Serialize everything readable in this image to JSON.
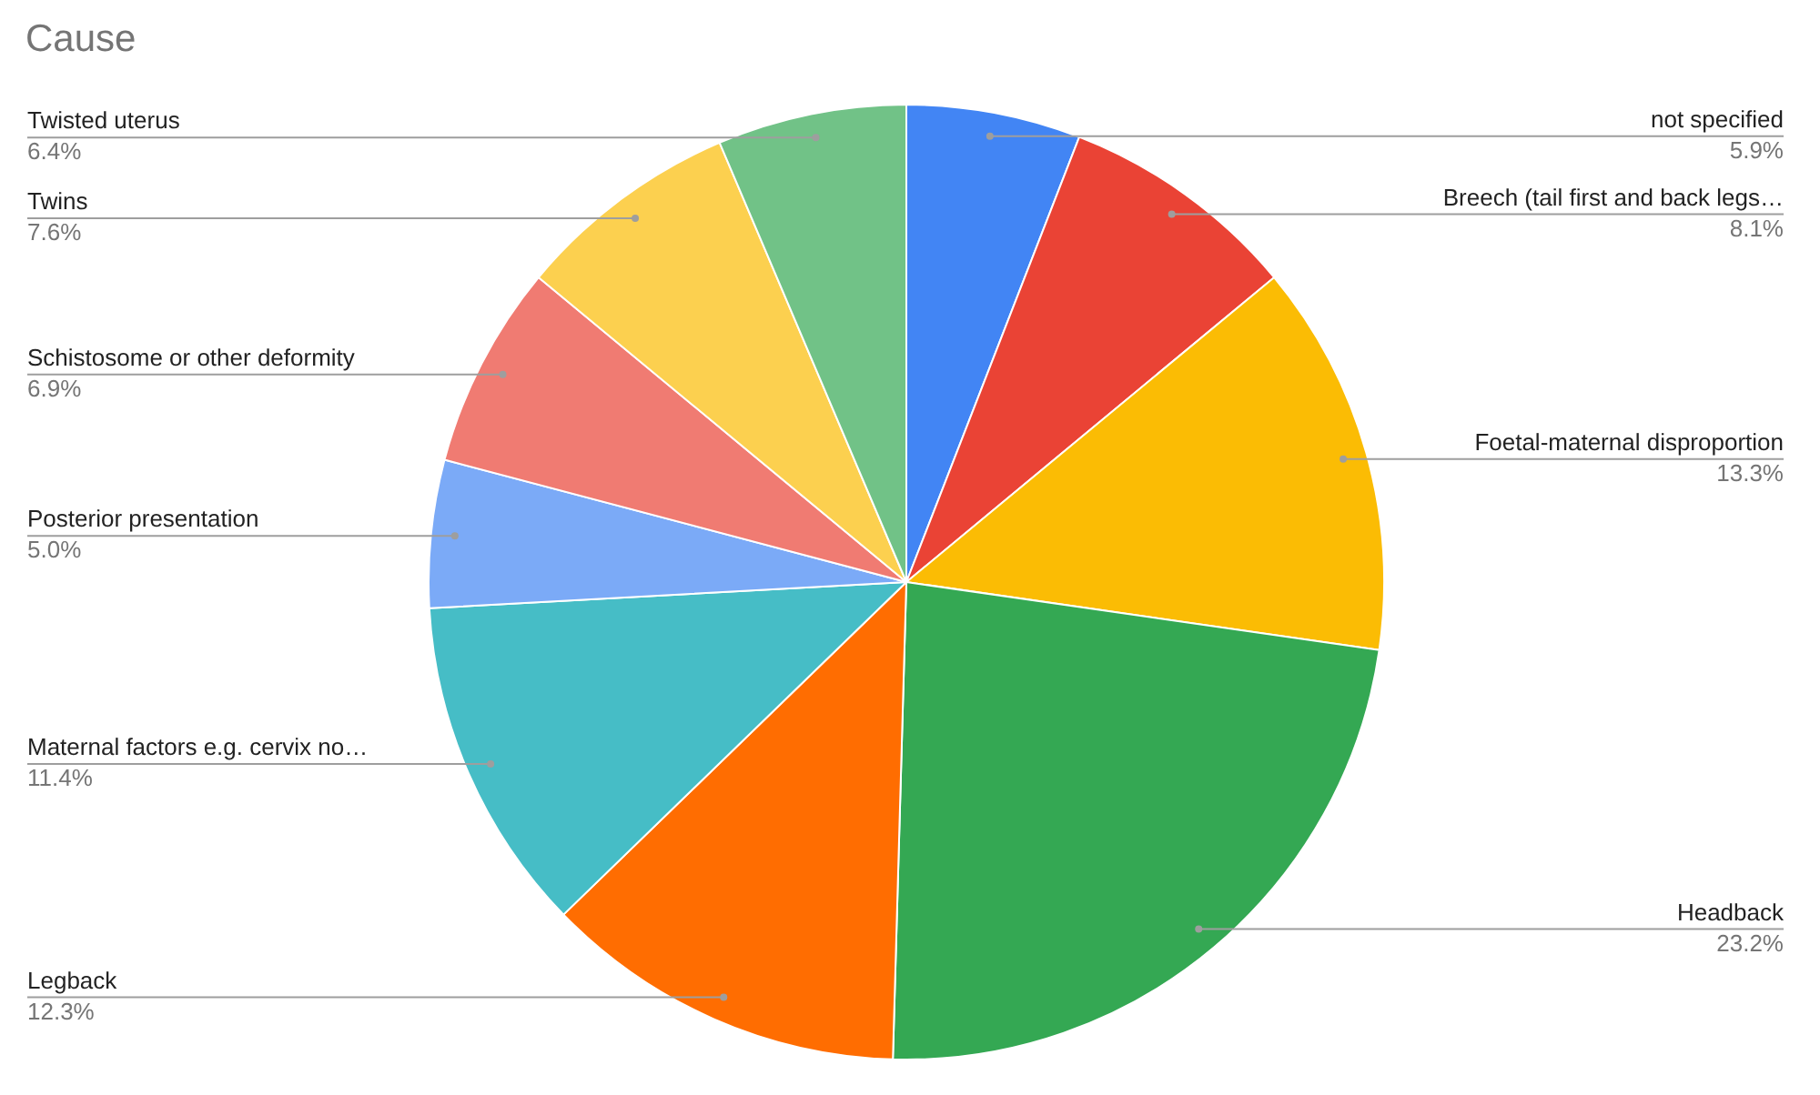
{
  "chart_data": {
    "type": "pie",
    "title": "Cause",
    "categories": [
      "not specified",
      "Breech (tail first and back legs…",
      "Foetal-maternal disproportion",
      "Headback",
      "Legback",
      "Maternal factors e.g. cervix no…",
      "Posterior presentation",
      "Schistosome or other deformity",
      "Twins",
      "Twisted uterus"
    ],
    "values": [
      5.9,
      8.1,
      13.3,
      23.2,
      12.3,
      11.4,
      5.0,
      6.9,
      7.6,
      6.4
    ],
    "value_labels": [
      "5.9%",
      "8.1%",
      "13.3%",
      "23.2%",
      "12.3%",
      "11.4%",
      "5.0%",
      "6.9%",
      "7.6%",
      "6.4%"
    ],
    "colors": [
      "#4285f4",
      "#ea4335",
      "#fbbc04",
      "#34a853",
      "#ff6d01",
      "#46bdc6",
      "#7baaf7",
      "#f07b72",
      "#fcd04f",
      "#71c287"
    ],
    "legend": false
  }
}
